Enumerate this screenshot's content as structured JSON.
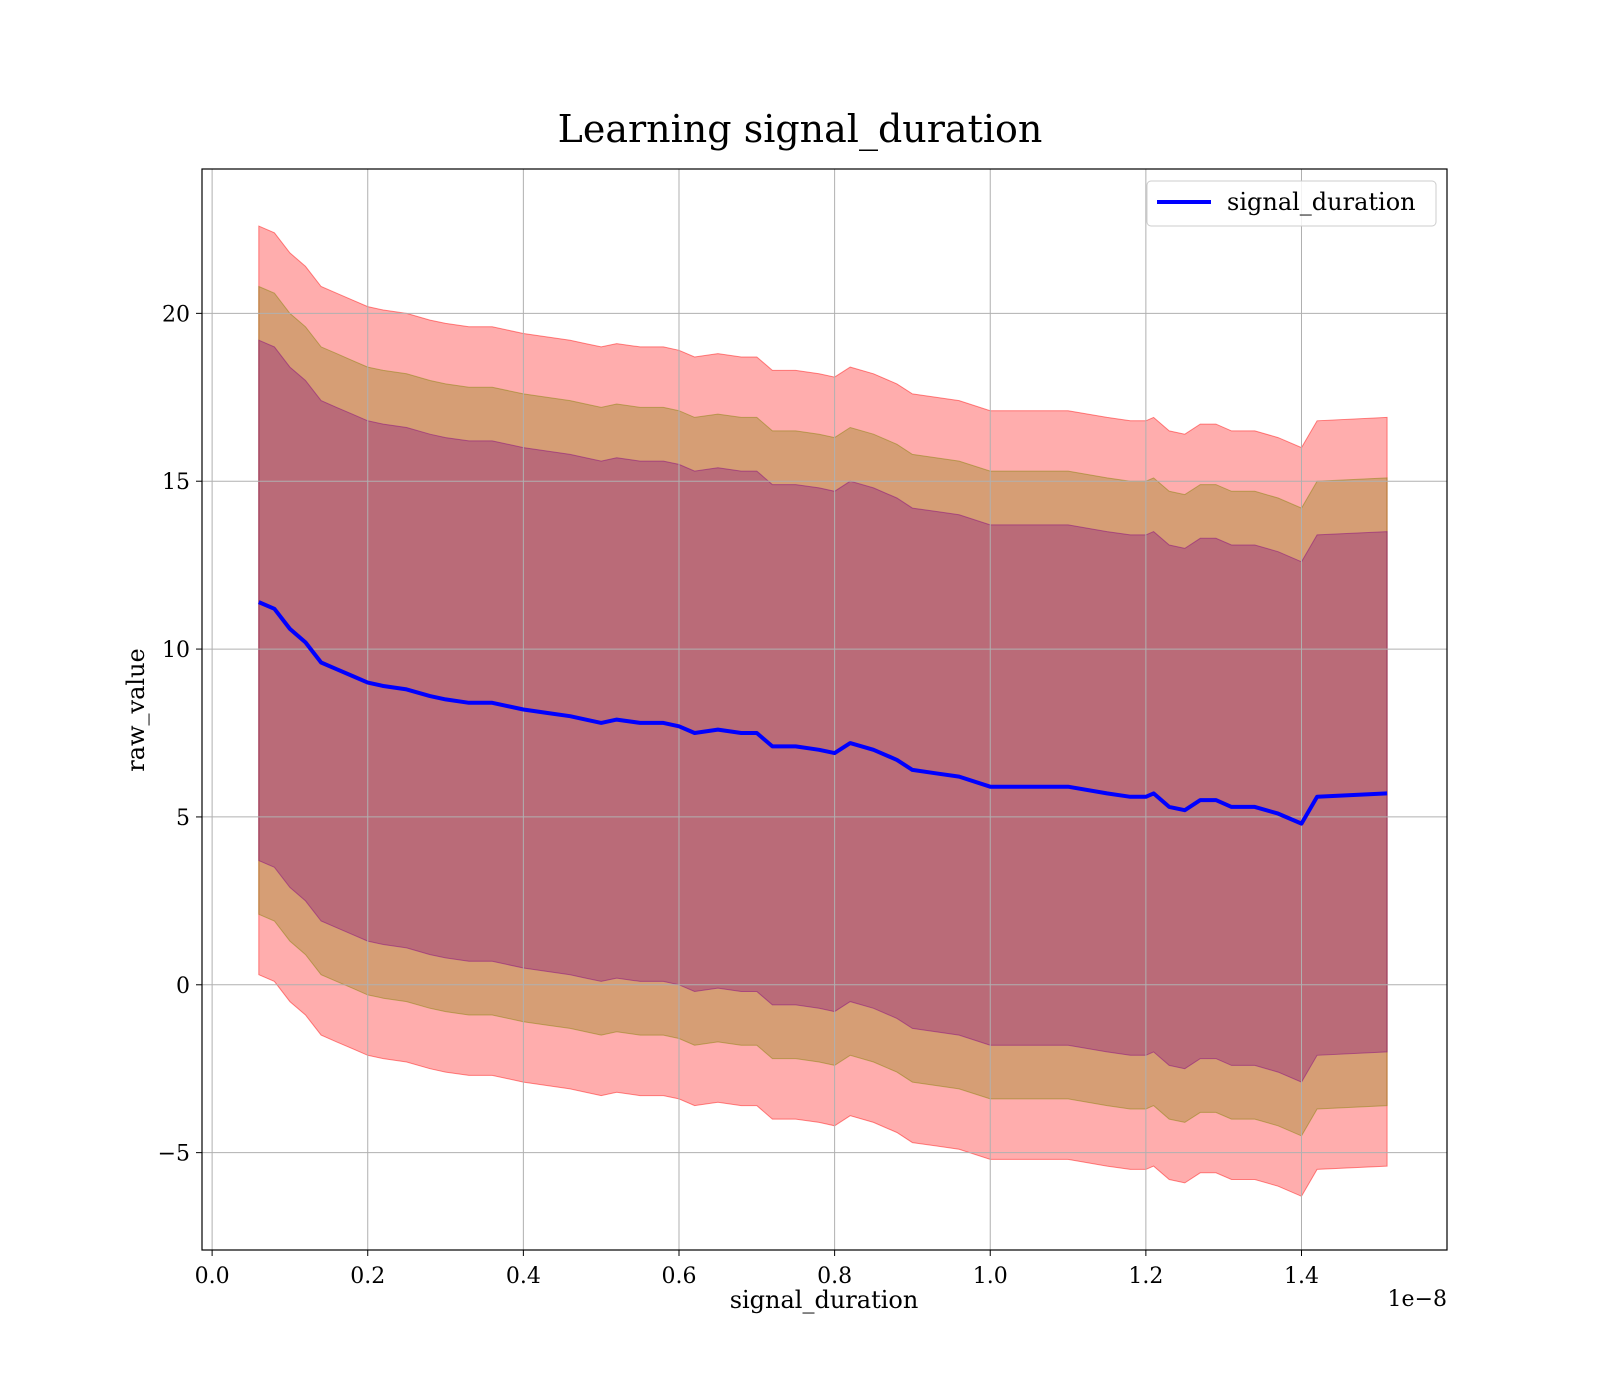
{
  "chart_data": {
    "type": "line",
    "title": "Learning signal_duration",
    "xlabel": "signal_duration",
    "ylabel": "raw_value",
    "x_multiplier_label": "1e−8",
    "x_scale": 1e-08,
    "xlim": [
      -0.013,
      1.587
    ],
    "ylim": [
      -7.9,
      24.3
    ],
    "grid": true,
    "legend_position": "top-right",
    "x_ticks": [
      0.0,
      0.2,
      0.4,
      0.6,
      0.8,
      1.0,
      1.2,
      1.4
    ],
    "x_tick_labels": [
      "0.0",
      "0.2",
      "0.4",
      "0.6",
      "0.8",
      "1.0",
      "1.2",
      "1.4"
    ],
    "y_ticks": [
      -5,
      0,
      5,
      10,
      15,
      20
    ],
    "y_tick_labels": [
      "−5",
      "0",
      "5",
      "10",
      "15",
      "20"
    ],
    "series": [
      {
        "name": "signal_duration",
        "color": "#0000ff",
        "x": [
          0.06,
          0.08,
          0.1,
          0.12,
          0.14,
          0.16,
          0.18,
          0.2,
          0.22,
          0.25,
          0.28,
          0.3,
          0.33,
          0.36,
          0.4,
          0.43,
          0.46,
          0.48,
          0.5,
          0.52,
          0.55,
          0.58,
          0.6,
          0.62,
          0.65,
          0.68,
          0.7,
          0.72,
          0.75,
          0.78,
          0.8,
          0.82,
          0.85,
          0.88,
          0.9,
          0.93,
          0.96,
          1.0,
          1.05,
          1.1,
          1.15,
          1.18,
          1.2,
          1.21,
          1.23,
          1.25,
          1.27,
          1.29,
          1.31,
          1.34,
          1.37,
          1.4,
          1.42,
          1.51
        ],
        "values": [
          11.4,
          11.2,
          10.6,
          10.2,
          9.6,
          9.4,
          9.2,
          9.0,
          8.9,
          8.8,
          8.6,
          8.5,
          8.4,
          8.4,
          8.2,
          8.1,
          8.0,
          7.9,
          7.8,
          7.9,
          7.8,
          7.8,
          7.7,
          7.5,
          7.6,
          7.5,
          7.5,
          7.1,
          7.1,
          7.0,
          6.9,
          7.2,
          7.0,
          6.7,
          6.4,
          6.3,
          6.2,
          5.9,
          5.9,
          5.9,
          5.7,
          5.6,
          5.6,
          5.7,
          5.3,
          5.2,
          5.5,
          5.5,
          5.3,
          5.3,
          5.1,
          4.8,
          5.6,
          5.7
        ]
      }
    ],
    "bands": [
      {
        "color": "#ff0000",
        "opacity": 0.32,
        "lower_offset": -11.1,
        "upper_offset": 11.2
      },
      {
        "color": "#808000",
        "opacity": 0.32,
        "lower_offset": -9.3,
        "upper_offset": 9.4
      },
      {
        "color": "#800080",
        "opacity": 0.32,
        "lower_offset": -7.7,
        "upper_offset": 7.8
      }
    ]
  }
}
